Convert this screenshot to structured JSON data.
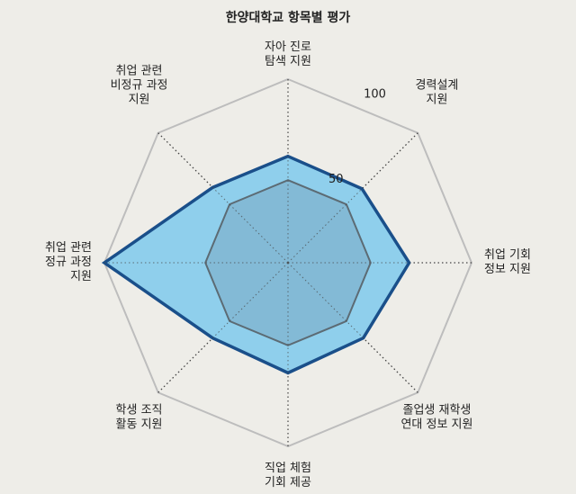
{
  "chart_data": {
    "type": "radar",
    "title": "한양대학교 항목별 평가",
    "axes": [
      [
        "자아 진로",
        "탐색 지원"
      ],
      [
        "경력설계",
        "지원"
      ],
      [
        "취업 기회",
        "정보 지원"
      ],
      [
        "졸업생 재학생",
        "연대 정보 지원"
      ],
      [
        "직업 체험",
        "기회 제공"
      ],
      [
        "학생 조직",
        "활동 지원"
      ],
      [
        "취업 관련",
        "정규 과정",
        "지원"
      ],
      [
        "취업 관련",
        "비정규 과정",
        "지원"
      ]
    ],
    "ticks": [
      50,
      100
    ],
    "tick_labels": [
      "50",
      "100"
    ],
    "range": [
      0,
      100
    ],
    "values": [
      58,
      57,
      66,
      58,
      60,
      58,
      100,
      58
    ],
    "reference_level": 45,
    "colors": {
      "fill": "#8fcfec",
      "stroke": "#1a4f8a",
      "reference_fill": "#7fb3cf",
      "reference_stroke": "#5c6b74",
      "grid_outer": "#bdbdbd",
      "grid_dotted": "#444444"
    }
  }
}
